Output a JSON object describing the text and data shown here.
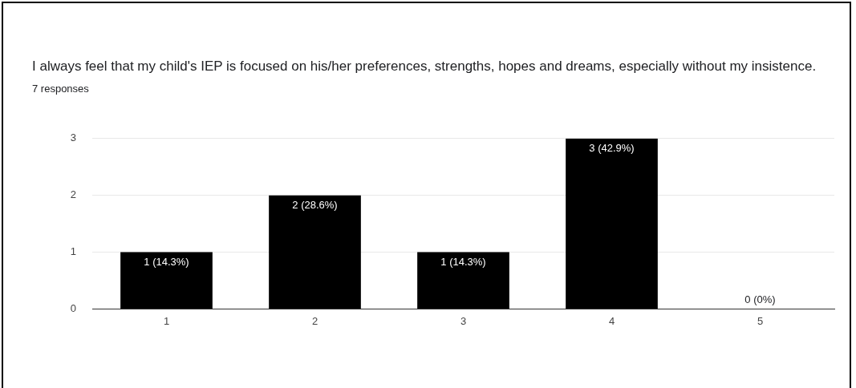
{
  "chart_data": {
    "type": "bar",
    "title": "I always feel that my child's IEP is focused on his/her preferences, strengths, hopes and dreams, especially without my insistence.",
    "subtitle": "7 responses",
    "categories": [
      "1",
      "2",
      "3",
      "4",
      "5"
    ],
    "values": [
      1,
      2,
      1,
      3,
      0
    ],
    "value_labels": [
      "1 (14.3%)",
      "2 (28.6%)",
      "1 (14.3%)",
      "3 (42.9%)",
      "0 (0%)"
    ],
    "color": "#000000",
    "ylim": [
      0,
      3
    ],
    "yticks": [
      0,
      1,
      2,
      3
    ],
    "grid": "y",
    "legend": false
  }
}
